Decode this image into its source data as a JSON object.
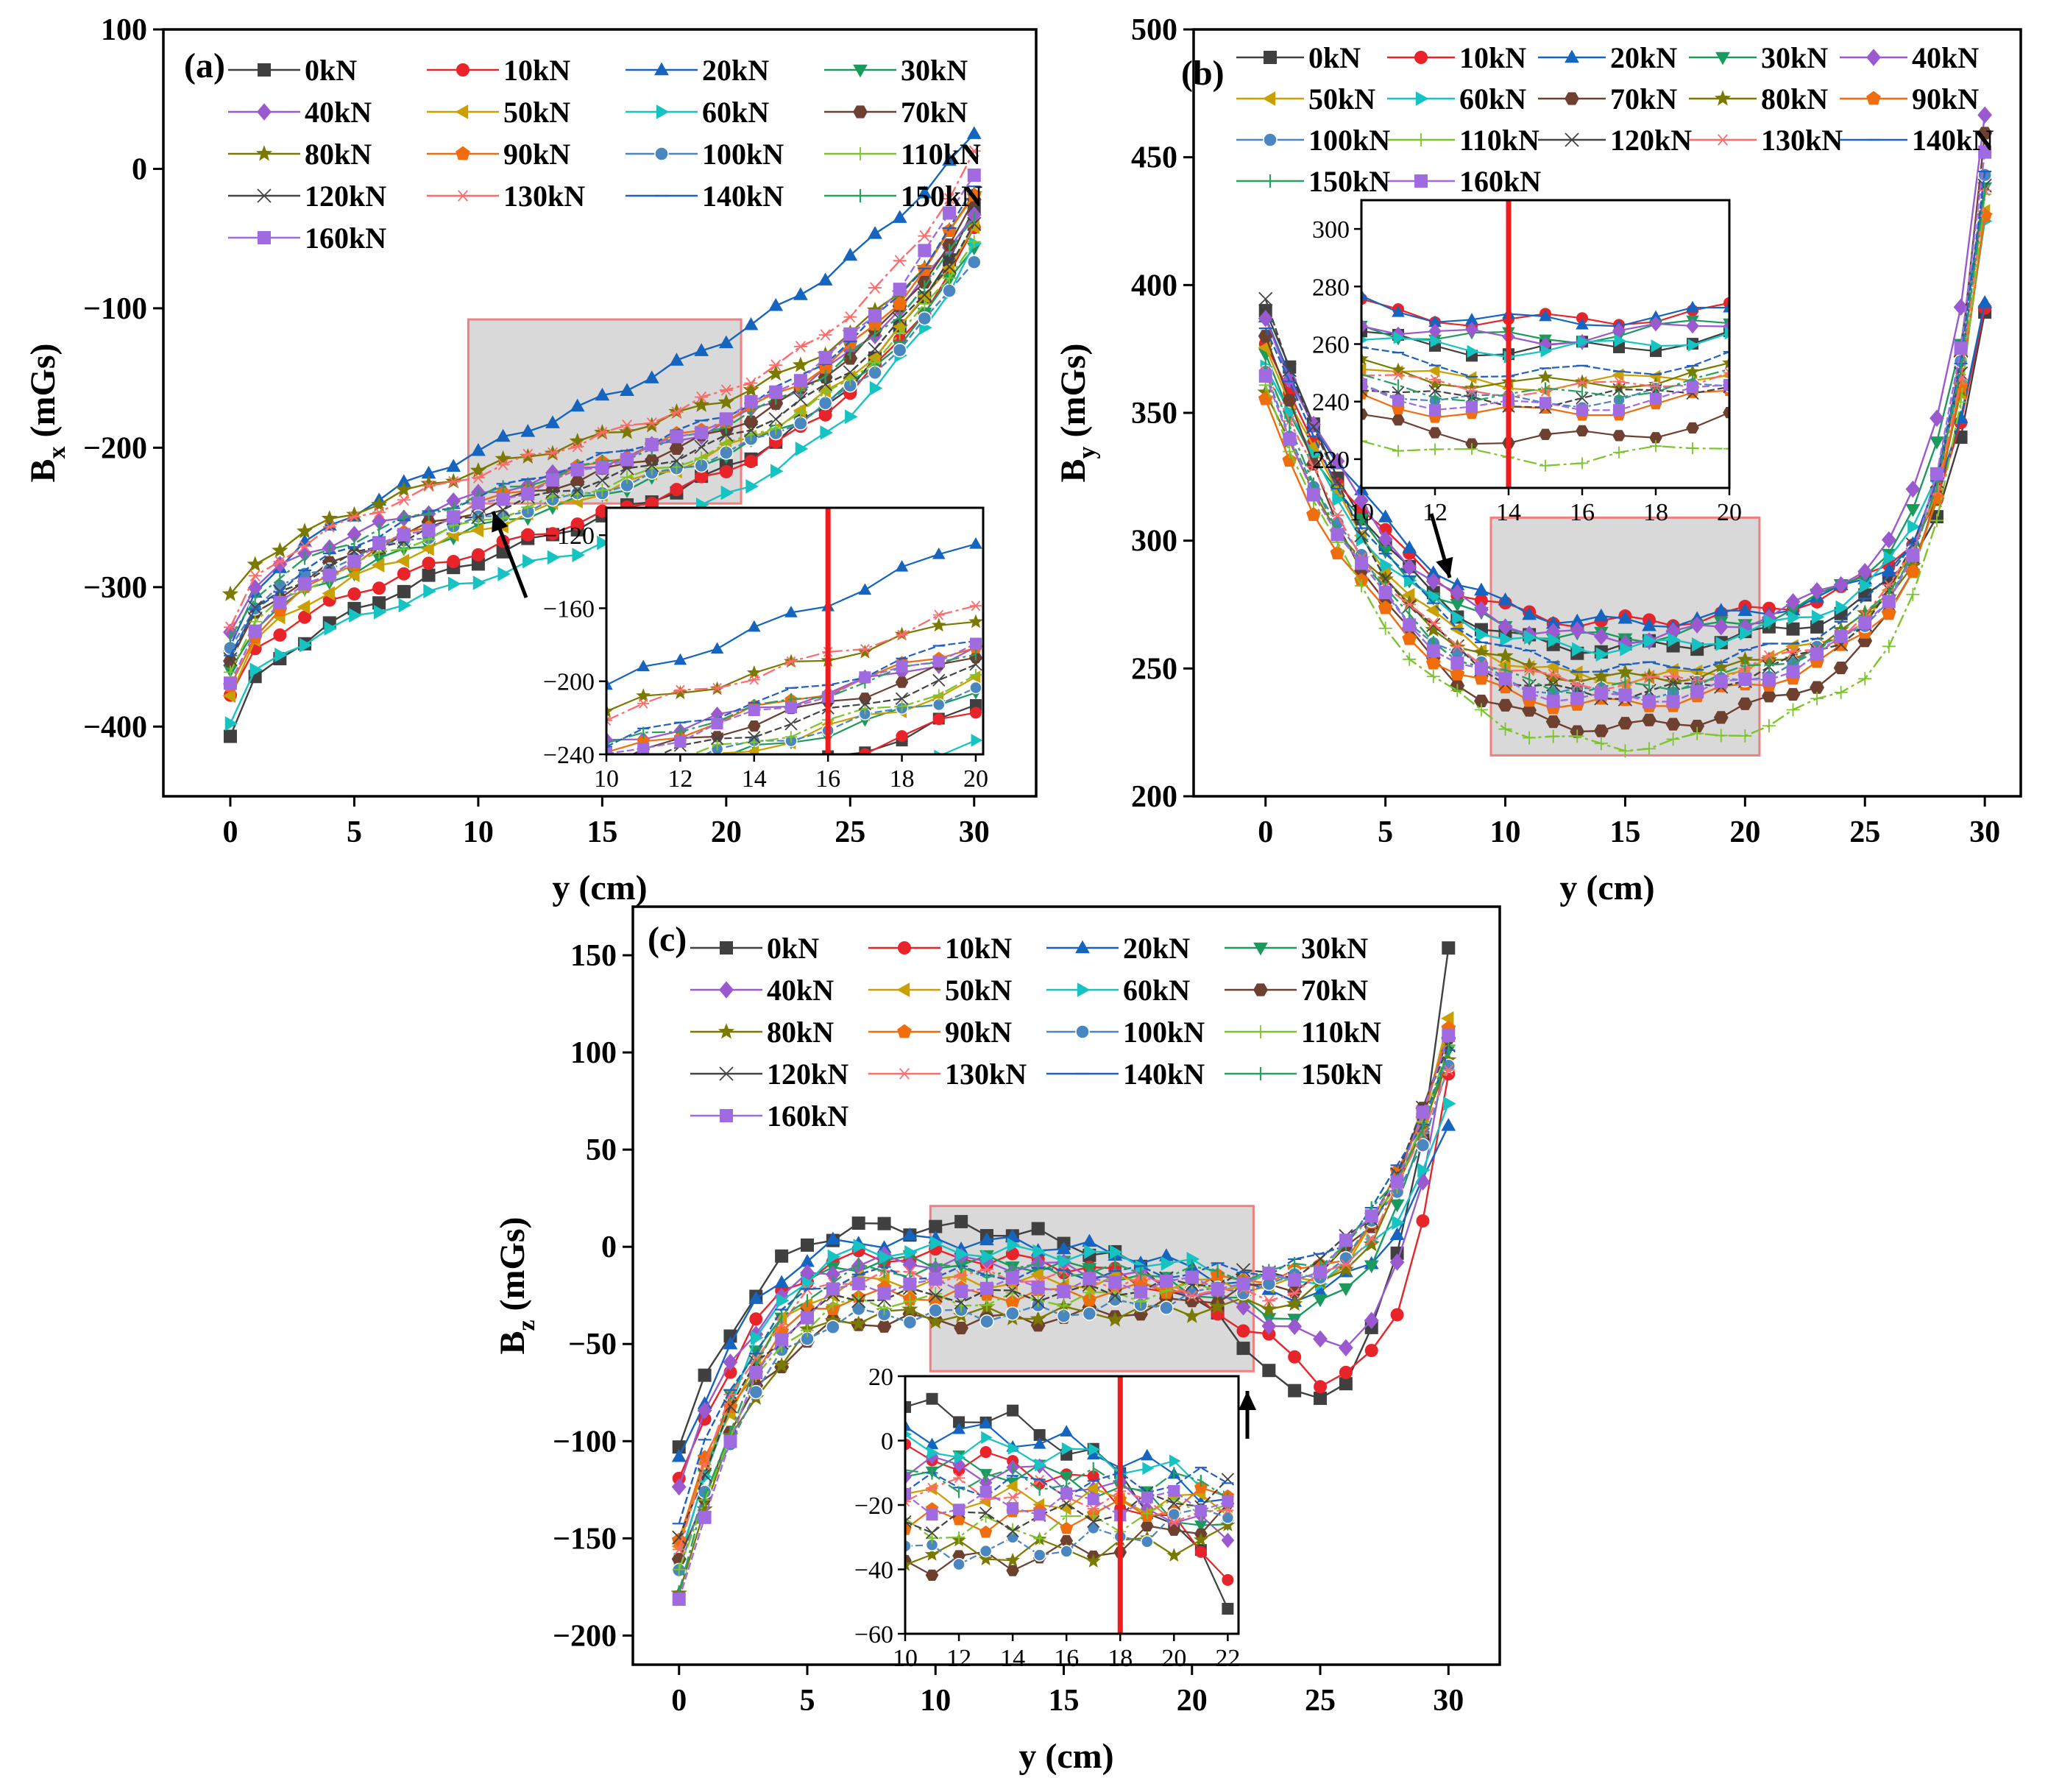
{
  "figure": {
    "loads": [
      "0kN",
      "10kN",
      "20kN",
      "30kN",
      "40kN",
      "50kN",
      "60kN",
      "70kN",
      "80kN",
      "90kN",
      "100kN",
      "110kN",
      "120kN",
      "130kN",
      "140kN",
      "150kN",
      "160kN"
    ],
    "colors": [
      "#404040",
      "#e8232a",
      "#1565c0",
      "#1a9a5c",
      "#9b59d0",
      "#c9a000",
      "#16c3c3",
      "#6e4030",
      "#7a7a00",
      "#f06d0e",
      "#4a86c0",
      "#7cc42c",
      "#444444",
      "#ff6a6a",
      "#2060c0",
      "#28a060",
      "#a06ae0"
    ],
    "markers": [
      "square",
      "circle",
      "triangle-up",
      "triangle-down",
      "diamond",
      "triangle-left",
      "triangle-right",
      "hexagon",
      "star",
      "pentagon",
      "sphere",
      "plus",
      "cross",
      "asterisk",
      "dash",
      "vbar",
      "square"
    ],
    "x": [
      0,
      1,
      2,
      3,
      4,
      5,
      6,
      7,
      8,
      9,
      10,
      11,
      12,
      13,
      14,
      15,
      16,
      17,
      18,
      19,
      20,
      21,
      22,
      23,
      24,
      25,
      26,
      27,
      28,
      29,
      30
    ]
  },
  "chart_data": [
    {
      "id": "a",
      "type": "line",
      "panel_label": "(a)",
      "xlabel": "y (cm)",
      "ylabel_main": "B",
      "ylabel_sub": "x",
      "ylabel_unit": " (mGs)",
      "xlim": [
        -2.7,
        32.5
      ],
      "ylim": [
        -450,
        100
      ],
      "xticks": [
        0,
        5,
        10,
        15,
        20,
        25,
        30
      ],
      "xtick_labels": [
        "0",
        "5",
        "10",
        "15",
        "20",
        "25",
        "30"
      ],
      "yticks": [
        -400,
        -300,
        -200,
        -100,
        0,
        100
      ],
      "ytick_labels": [
        "−400",
        "−300",
        "−200",
        "−100",
        "0",
        "100"
      ],
      "legend_cols": 4,
      "zoom": {
        "x1": 9.6,
        "x2": 20.6,
        "y1": -240,
        "y2": -108
      },
      "inset": {
        "xlim": [
          10,
          20.2
        ],
        "ylim": [
          -240,
          -105
        ],
        "xticks": [
          10,
          12,
          14,
          16,
          18,
          20
        ],
        "xtick_labels": [
          "10",
          "12",
          "14",
          "16",
          "18",
          "20"
        ],
        "yticks": [
          -240,
          -200,
          -160,
          -120
        ],
        "ytick_labels": [
          "−240",
          "−200",
          "−160",
          "−120"
        ],
        "redline": 16
      },
      "series": [
        {
          "name": "0kN",
          "start": -407,
          "end": -30,
          "shape": "s",
          "bump": 0
        },
        {
          "name": "10kN",
          "start": -380,
          "end": -45,
          "shape": "s",
          "bump": -8
        },
        {
          "name": "20kN",
          "start": -345,
          "end": 24,
          "shape": "s2",
          "bump": 10
        },
        {
          "name": "30kN",
          "start": -360,
          "end": -55,
          "shape": "s",
          "bump": 0
        },
        {
          "name": "40kN",
          "start": -330,
          "end": -30,
          "shape": "s",
          "bump": -6
        },
        {
          "name": "50kN",
          "start": -375,
          "end": -40,
          "shape": "s",
          "bump": 4
        },
        {
          "name": "60kN",
          "start": -397,
          "end": -55,
          "shape": "s",
          "bump": -14
        },
        {
          "name": "70kN",
          "start": -355,
          "end": -25,
          "shape": "s",
          "bump": 0
        },
        {
          "name": "80kN",
          "start": -308,
          "end": -20,
          "shape": "f",
          "bump": 6
        },
        {
          "name": "90kN",
          "start": -372,
          "end": -18,
          "shape": "s",
          "bump": 14
        },
        {
          "name": "100kN",
          "start": -342,
          "end": -64,
          "shape": "s",
          "bump": -4
        },
        {
          "name": "110kN",
          "start": -358,
          "end": -50,
          "shape": "s",
          "bump": 2
        },
        {
          "name": "120kN",
          "start": -350,
          "end": -40,
          "shape": "s",
          "bump": -2
        },
        {
          "name": "130kN",
          "start": -330,
          "end": 10,
          "shape": "s",
          "bump": -3
        },
        {
          "name": "140kN",
          "start": -352,
          "end": -15,
          "shape": "s",
          "bump": 5
        },
        {
          "name": "150kN",
          "start": -338,
          "end": -35,
          "shape": "s",
          "bump": 1
        },
        {
          "name": "160kN",
          "start": -368,
          "end": -2,
          "shape": "s",
          "bump": 3
        }
      ]
    },
    {
      "id": "b",
      "type": "line",
      "panel_label": "(b)",
      "xlabel": "y (cm)",
      "ylabel_main": "B",
      "ylabel_sub": "y",
      "ylabel_unit": " (mGs)",
      "xlim": [
        -3,
        31.5
      ],
      "ylim": [
        200,
        500
      ],
      "xticks": [
        0,
        5,
        10,
        15,
        20,
        25,
        30
      ],
      "xtick_labels": [
        "0",
        "5",
        "10",
        "15",
        "20",
        "25",
        "30"
      ],
      "yticks": [
        200,
        250,
        300,
        350,
        400,
        450,
        500
      ],
      "ytick_labels": [
        "200",
        "250",
        "300",
        "350",
        "400",
        "450",
        "500"
      ],
      "legend_cols": 5,
      "zoom": {
        "x1": 9.4,
        "x2": 20.6,
        "y1": 216,
        "y2": 309
      },
      "inset": {
        "xlim": [
          10,
          20
        ],
        "ylim": [
          210,
          310
        ],
        "xticks": [
          10,
          12,
          14,
          16,
          18,
          20
        ],
        "xtick_labels": [
          "10",
          "12",
          "14",
          "16",
          "18",
          "20"
        ],
        "yticks": [
          220,
          240,
          260,
          280,
          300
        ],
        "ytick_labels": [
          "220",
          "240",
          "260",
          "280",
          "300"
        ],
        "redline": 14
      },
      "series": [
        {
          "name": "0kN",
          "start": 390,
          "min": 258,
          "end": 387
        },
        {
          "name": "10kN",
          "start": 375,
          "min": 268,
          "end": 389
        },
        {
          "name": "20kN",
          "start": 385,
          "min": 268,
          "end": 393
        },
        {
          "name": "30kN",
          "start": 372,
          "min": 262,
          "end": 440
        },
        {
          "name": "40kN",
          "start": 388,
          "min": 262,
          "end": 469
        },
        {
          "name": "50kN",
          "start": 378,
          "min": 246,
          "end": 430
        },
        {
          "name": "60kN",
          "start": 370,
          "min": 258,
          "end": 424
        },
        {
          "name": "70kN",
          "start": 380,
          "min": 227,
          "end": 457
        },
        {
          "name": "80kN",
          "start": 356,
          "min": 246,
          "end": 425
        },
        {
          "name": "90kN",
          "start": 353,
          "min": 236,
          "end": 427
        },
        {
          "name": "100kN",
          "start": 365,
          "min": 240,
          "end": 445
        },
        {
          "name": "110kN",
          "start": 362,
          "min": 220,
          "end": 438
        },
        {
          "name": "120kN",
          "start": 397,
          "min": 240,
          "end": 440
        },
        {
          "name": "130kN",
          "start": 368,
          "min": 244,
          "end": 436
        },
        {
          "name": "140kN",
          "start": 383,
          "min": 250,
          "end": 442
        },
        {
          "name": "150kN",
          "start": 366,
          "min": 242,
          "end": 435
        },
        {
          "name": "160kN",
          "start": 362,
          "min": 238,
          "end": 452
        }
      ]
    },
    {
      "id": "c",
      "type": "line",
      "panel_label": "(c)",
      "xlabel": "y (cm)",
      "ylabel_main": "B",
      "ylabel_sub": "z",
      "ylabel_unit": " (mGs)",
      "xlim": [
        -1.8,
        32
      ],
      "ylim": [
        -215,
        175
      ],
      "xticks": [
        0,
        5,
        10,
        15,
        20,
        25,
        30
      ],
      "xtick_labels": [
        "0",
        "5",
        "10",
        "15",
        "20",
        "25",
        "30"
      ],
      "yticks": [
        -200,
        -150,
        -100,
        -50,
        0,
        50,
        100,
        150
      ],
      "ytick_labels": [
        "−200",
        "−150",
        "−100",
        "−50",
        "0",
        "50",
        "100",
        "150"
      ],
      "legend_cols": 4,
      "zoom": {
        "x1": 9.8,
        "x2": 22.4,
        "y1": -64,
        "y2": 21
      },
      "inset": {
        "xlim": [
          10,
          22.4
        ],
        "ylim": [
          -60,
          20
        ],
        "xticks": [
          10,
          12,
          14,
          16,
          18,
          20,
          22
        ],
        "xtick_labels": [
          "10",
          "12",
          "14",
          "16",
          "18",
          "20",
          "22"
        ],
        "yticks": [
          -60,
          -40,
          -20,
          0,
          20
        ],
        "ytick_labels": [
          "−60",
          "−40",
          "−20",
          "0",
          "20"
        ],
        "redline": 18
      },
      "series": [
        {
          "name": "0kN",
          "start": -103,
          "plat": 10,
          "dip": -78,
          "dipx": 24,
          "end": 152
        },
        {
          "name": "10kN",
          "start": -123,
          "plat": -5,
          "dip": -68,
          "dipx": 25,
          "end": 85
        },
        {
          "name": "20kN",
          "start": -110,
          "plat": 3,
          "dip": -25,
          "dipx": 23,
          "end": 62
        },
        {
          "name": "30kN",
          "start": -160,
          "plat": -8,
          "dip": -35,
          "dipx": 23,
          "end": 105
        },
        {
          "name": "40kN",
          "start": -120,
          "plat": -8,
          "dip": -50,
          "dipx": 25,
          "end": 110
        },
        {
          "name": "50kN",
          "start": -155,
          "plat": -18,
          "dip": -20,
          "dipx": 23,
          "end": 115
        },
        {
          "name": "60kN",
          "start": -165,
          "plat": -2,
          "dip": -18,
          "dipx": 23,
          "end": 70
        },
        {
          "name": "70kN",
          "start": -162,
          "plat": -38,
          "dip": -22,
          "dipx": 22,
          "end": 108
        },
        {
          "name": "80kN",
          "start": -175,
          "plat": -35,
          "dip": -30,
          "dipx": 22,
          "end": 100
        },
        {
          "name": "90kN",
          "start": -148,
          "plat": -25,
          "dip": -15,
          "dipx": 23,
          "end": 114
        },
        {
          "name": "100kN",
          "start": -168,
          "plat": -35,
          "dip": -20,
          "dipx": 22,
          "end": 90
        },
        {
          "name": "110kN",
          "start": -170,
          "plat": -28,
          "dip": -18,
          "dipx": 22,
          "end": 100
        },
        {
          "name": "120kN",
          "start": -150,
          "plat": -25,
          "dip": -15,
          "dipx": 22,
          "end": 105
        },
        {
          "name": "130kN",
          "start": -152,
          "plat": -15,
          "dip": -25,
          "dipx": 22,
          "end": 95
        },
        {
          "name": "140kN",
          "start": -140,
          "plat": -14,
          "dip": -12,
          "dipx": 22,
          "end": 102
        },
        {
          "name": "150kN",
          "start": -180,
          "plat": -12,
          "dip": -14,
          "dipx": 22,
          "end": 98
        },
        {
          "name": "160kN",
          "start": -185,
          "plat": -20,
          "dip": -18,
          "dipx": 22,
          "end": 106
        }
      ]
    }
  ]
}
